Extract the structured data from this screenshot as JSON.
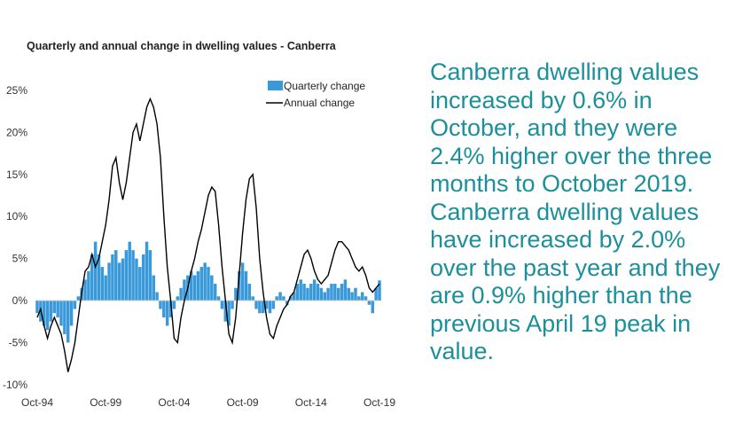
{
  "chart_data": {
    "type": "bar+line",
    "title": "Quarterly and annual change in dwelling values - Canberra",
    "xlabel": "",
    "ylabel": "",
    "ylim": [
      -10,
      25
    ],
    "y_ticks": [
      "25%",
      "20%",
      "15%",
      "10%",
      "5%",
      "0%",
      "-5%",
      "-10%"
    ],
    "y_tick_values": [
      25,
      20,
      15,
      10,
      5,
      0,
      -5,
      -10
    ],
    "x_tick_labels": [
      "Oct-94",
      "Oct-99",
      "Oct-04",
      "Oct-09",
      "Oct-14",
      "Oct-19"
    ],
    "x_range": [
      1994.75,
      2019.75
    ],
    "x_tick_years": [
      1994.75,
      1999.75,
      2004.75,
      2009.75,
      2014.75,
      2019.75
    ],
    "legend": {
      "placement": "top-right",
      "entries": [
        "Quarterly change",
        "Annual change"
      ]
    },
    "series": [
      {
        "name": "Quarterly change",
        "kind": "bar",
        "color": "#3a9ad9",
        "points": [
          [
            1994.75,
            -1.5
          ],
          [
            1995.0,
            -2.5
          ],
          [
            1995.25,
            -3.0
          ],
          [
            1995.5,
            -3.5
          ],
          [
            1995.75,
            -2.5
          ],
          [
            1996.0,
            -1.5
          ],
          [
            1996.25,
            -2.0
          ],
          [
            1996.5,
            -3.0
          ],
          [
            1996.75,
            -4.0
          ],
          [
            1997.0,
            -5.0
          ],
          [
            1997.25,
            -3.0
          ],
          [
            1997.5,
            -1.0
          ],
          [
            1997.75,
            0.5
          ],
          [
            1998.0,
            1.5
          ],
          [
            1998.25,
            2.5
          ],
          [
            1998.5,
            3.5
          ],
          [
            1998.75,
            5.5
          ],
          [
            1999.0,
            7.0
          ],
          [
            1999.25,
            5.5
          ],
          [
            1999.5,
            4.0
          ],
          [
            1999.75,
            3.0
          ],
          [
            2000.0,
            4.5
          ],
          [
            2000.25,
            5.5
          ],
          [
            2000.5,
            6.0
          ],
          [
            2000.75,
            4.5
          ],
          [
            2001.0,
            5.0
          ],
          [
            2001.25,
            6.0
          ],
          [
            2001.5,
            7.0
          ],
          [
            2001.75,
            6.0
          ],
          [
            2002.0,
            5.0
          ],
          [
            2002.25,
            4.0
          ],
          [
            2002.5,
            5.5
          ],
          [
            2002.75,
            7.0
          ],
          [
            2003.0,
            6.0
          ],
          [
            2003.25,
            3.0
          ],
          [
            2003.5,
            1.0
          ],
          [
            2003.75,
            -1.0
          ],
          [
            2004.0,
            -2.0
          ],
          [
            2004.25,
            -3.0
          ],
          [
            2004.5,
            -2.0
          ],
          [
            2004.75,
            -1.0
          ],
          [
            2005.0,
            0.5
          ],
          [
            2005.25,
            1.5
          ],
          [
            2005.5,
            2.5
          ],
          [
            2005.75,
            3.0
          ],
          [
            2006.0,
            3.5
          ],
          [
            2006.25,
            3.0
          ],
          [
            2006.5,
            3.5
          ],
          [
            2006.75,
            4.0
          ],
          [
            2007.0,
            4.5
          ],
          [
            2007.25,
            4.0
          ],
          [
            2007.5,
            3.0
          ],
          [
            2007.75,
            2.0
          ],
          [
            2008.0,
            0.5
          ],
          [
            2008.25,
            -1.0
          ],
          [
            2008.5,
            -2.5
          ],
          [
            2008.75,
            -3.0
          ],
          [
            2009.0,
            -1.0
          ],
          [
            2009.25,
            1.5
          ],
          [
            2009.5,
            3.5
          ],
          [
            2009.75,
            4.5
          ],
          [
            2010.0,
            3.5
          ],
          [
            2010.25,
            2.0
          ],
          [
            2010.5,
            0.5
          ],
          [
            2010.75,
            -1.0
          ],
          [
            2011.0,
            -1.5
          ],
          [
            2011.25,
            -1.5
          ],
          [
            2011.5,
            -1.0
          ],
          [
            2011.75,
            -1.5
          ],
          [
            2012.0,
            -1.0
          ],
          [
            2012.25,
            0.5
          ],
          [
            2012.5,
            1.0
          ],
          [
            2012.75,
            0.5
          ],
          [
            2013.0,
            -0.5
          ],
          [
            2013.25,
            0.5
          ],
          [
            2013.5,
            1.0
          ],
          [
            2013.75,
            2.0
          ],
          [
            2014.0,
            2.5
          ],
          [
            2014.25,
            2.0
          ],
          [
            2014.5,
            1.5
          ],
          [
            2014.75,
            2.0
          ],
          [
            2015.0,
            2.5
          ],
          [
            2015.25,
            2.0
          ],
          [
            2015.5,
            1.5
          ],
          [
            2015.75,
            1.0
          ],
          [
            2016.0,
            1.5
          ],
          [
            2016.25,
            2.0
          ],
          [
            2016.5,
            2.0
          ],
          [
            2016.75,
            1.5
          ],
          [
            2017.0,
            2.0
          ],
          [
            2017.25,
            2.5
          ],
          [
            2017.5,
            1.5
          ],
          [
            2017.75,
            1.0
          ],
          [
            2018.0,
            1.5
          ],
          [
            2018.25,
            0.5
          ],
          [
            2018.5,
            1.0
          ],
          [
            2018.75,
            0.5
          ],
          [
            2019.0,
            -0.5
          ],
          [
            2019.25,
            -1.5
          ],
          [
            2019.5,
            1.5
          ],
          [
            2019.75,
            2.4
          ]
        ]
      },
      {
        "name": "Annual change",
        "kind": "line",
        "color": "#000000",
        "points": [
          [
            1994.75,
            -2.0
          ],
          [
            1995.0,
            -1.0
          ],
          [
            1995.25,
            -3.0
          ],
          [
            1995.5,
            -4.5
          ],
          [
            1995.75,
            -3.0
          ],
          [
            1996.0,
            -2.0
          ],
          [
            1996.25,
            -3.0
          ],
          [
            1996.5,
            -4.0
          ],
          [
            1996.75,
            -6.0
          ],
          [
            1997.0,
            -8.5
          ],
          [
            1997.25,
            -7.0
          ],
          [
            1997.5,
            -5.0
          ],
          [
            1997.75,
            -2.0
          ],
          [
            1998.0,
            1.0
          ],
          [
            1998.25,
            3.5
          ],
          [
            1998.5,
            4.0
          ],
          [
            1998.75,
            5.5
          ],
          [
            1999.0,
            4.0
          ],
          [
            1999.25,
            5.0
          ],
          [
            1999.5,
            7.0
          ],
          [
            1999.75,
            9.0
          ],
          [
            2000.0,
            12.0
          ],
          [
            2000.25,
            16.0
          ],
          [
            2000.5,
            17.0
          ],
          [
            2000.75,
            14.0
          ],
          [
            2001.0,
            12.0
          ],
          [
            2001.25,
            14.0
          ],
          [
            2001.5,
            17.0
          ],
          [
            2001.75,
            20.0
          ],
          [
            2002.0,
            21.0
          ],
          [
            2002.25,
            19.0
          ],
          [
            2002.5,
            21.0
          ],
          [
            2002.75,
            23.0
          ],
          [
            2003.0,
            24.0
          ],
          [
            2003.25,
            23.0
          ],
          [
            2003.5,
            21.0
          ],
          [
            2003.75,
            17.0
          ],
          [
            2004.0,
            10.0
          ],
          [
            2004.25,
            4.0
          ],
          [
            2004.5,
            0.0
          ],
          [
            2004.75,
            -4.5
          ],
          [
            2005.0,
            -5.0
          ],
          [
            2005.25,
            -2.0
          ],
          [
            2005.5,
            0.0
          ],
          [
            2005.75,
            1.5
          ],
          [
            2006.0,
            3.5
          ],
          [
            2006.25,
            5.0
          ],
          [
            2006.5,
            7.0
          ],
          [
            2006.75,
            8.5
          ],
          [
            2007.0,
            10.5
          ],
          [
            2007.25,
            12.5
          ],
          [
            2007.5,
            13.5
          ],
          [
            2007.75,
            13.0
          ],
          [
            2008.0,
            9.0
          ],
          [
            2008.25,
            4.0
          ],
          [
            2008.5,
            0.0
          ],
          [
            2008.75,
            -4.0
          ],
          [
            2009.0,
            -5.0
          ],
          [
            2009.25,
            -2.0
          ],
          [
            2009.5,
            3.0
          ],
          [
            2009.75,
            8.0
          ],
          [
            2010.0,
            12.0
          ],
          [
            2010.25,
            14.5
          ],
          [
            2010.5,
            15.0
          ],
          [
            2010.75,
            11.0
          ],
          [
            2011.0,
            5.0
          ],
          [
            2011.25,
            1.0
          ],
          [
            2011.5,
            -2.0
          ],
          [
            2011.75,
            -4.0
          ],
          [
            2012.0,
            -4.5
          ],
          [
            2012.25,
            -3.0
          ],
          [
            2012.5,
            -2.0
          ],
          [
            2012.75,
            -1.0
          ],
          [
            2013.0,
            -0.5
          ],
          [
            2013.25,
            0.5
          ],
          [
            2013.5,
            1.0
          ],
          [
            2013.75,
            2.5
          ],
          [
            2014.0,
            4.0
          ],
          [
            2014.25,
            5.5
          ],
          [
            2014.5,
            6.0
          ],
          [
            2014.75,
            5.0
          ],
          [
            2015.0,
            3.5
          ],
          [
            2015.25,
            2.5
          ],
          [
            2015.5,
            2.0
          ],
          [
            2015.75,
            2.5
          ],
          [
            2016.0,
            3.0
          ],
          [
            2016.25,
            4.5
          ],
          [
            2016.5,
            6.0
          ],
          [
            2016.75,
            7.0
          ],
          [
            2017.0,
            7.0
          ],
          [
            2017.25,
            6.5
          ],
          [
            2017.5,
            6.0
          ],
          [
            2017.75,
            5.0
          ],
          [
            2018.0,
            4.0
          ],
          [
            2018.25,
            3.5
          ],
          [
            2018.5,
            4.0
          ],
          [
            2018.75,
            3.0
          ],
          [
            2019.0,
            1.5
          ],
          [
            2019.25,
            1.0
          ],
          [
            2019.5,
            1.5
          ],
          [
            2019.75,
            2.0
          ]
        ]
      }
    ]
  },
  "summary_text": "Canberra dwelling values increased by 0.6% in October, and they were 2.4% higher over the three months to October 2019.  Canberra dwelling values have increased by 2.0% over the past year and they are 0.9% higher than the previous April 19 peak in value."
}
